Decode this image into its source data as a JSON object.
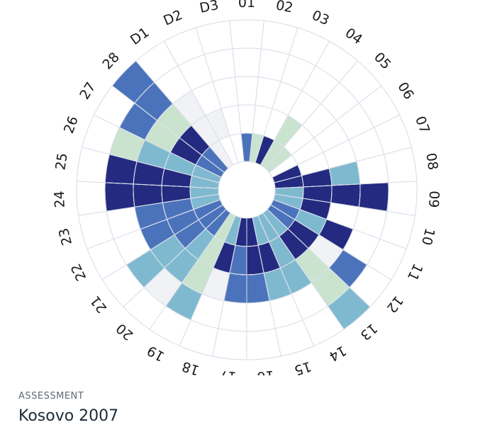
{
  "caption": {
    "eyebrow": "ASSESSMENT",
    "title": "Kosovo 2007"
  },
  "chart_data": {
    "type": "radial-heatmap",
    "categories": [
      "01",
      "02",
      "03",
      "04",
      "05",
      "06",
      "07",
      "08",
      "09",
      "10",
      "11",
      "12",
      "13",
      "14",
      "15",
      "16",
      "17",
      "18",
      "19",
      "20",
      "21",
      "22",
      "23",
      "24",
      "25",
      "26",
      "27",
      "28",
      "D1",
      "D2",
      "D3"
    ],
    "rings": 5,
    "grid": true,
    "palette": {
      "0": "#ffffff",
      "1": "#f0f2f6",
      "2": "#c9e3cf",
      "3": "#7fb9d0",
      "4": "#4b73bb",
      "5": "#232a80"
    },
    "grid_color": "#d6dbe6",
    "levels": [
      [
        4,
        0,
        0,
        0,
        0
      ],
      [
        2,
        0,
        0,
        0,
        0
      ],
      [
        5,
        0,
        0,
        0,
        0
      ],
      [
        2,
        2,
        0,
        0,
        0
      ],
      [
        2,
        0,
        0,
        0,
        0
      ],
      [
        0,
        0,
        0,
        0,
        0
      ],
      [
        5,
        0,
        0,
        0,
        0
      ],
      [
        5,
        5,
        3,
        0,
        0
      ],
      [
        3,
        5,
        5,
        5,
        0
      ],
      [
        3,
        5,
        0,
        0,
        0
      ],
      [
        4,
        3,
        5,
        0,
        0
      ],
      [
        4,
        5,
        1,
        4,
        0
      ],
      [
        3,
        5,
        2,
        2,
        3
      ],
      [
        3,
        3,
        3,
        0,
        0
      ],
      [
        3,
        5,
        3,
        0,
        0
      ],
      [
        5,
        5,
        4,
        0,
        0
      ],
      [
        5,
        4,
        4,
        0,
        0
      ],
      [
        3,
        5,
        1,
        0,
        0
      ],
      [
        2,
        2,
        2,
        3,
        0
      ],
      [
        4,
        3,
        3,
        1,
        0
      ],
      [
        4,
        4,
        3,
        3,
        0
      ],
      [
        4,
        4,
        4,
        0,
        0
      ],
      [
        3,
        4,
        4,
        0,
        0
      ],
      [
        3,
        5,
        5,
        5,
        0
      ],
      [
        3,
        5,
        5,
        5,
        0
      ],
      [
        3,
        3,
        3,
        2,
        0
      ],
      [
        4,
        5,
        2,
        4,
        0
      ],
      [
        4,
        5,
        2,
        4,
        4
      ],
      [
        1,
        1,
        1,
        0,
        0
      ],
      [
        0,
        1,
        0,
        0,
        0
      ],
      [
        0,
        0,
        0,
        0,
        0
      ]
    ]
  }
}
